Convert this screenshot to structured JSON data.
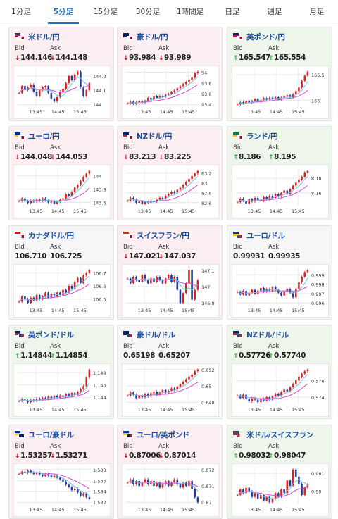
{
  "tabs": [
    {
      "label": "1分足",
      "active": false
    },
    {
      "label": "5分足",
      "active": true
    },
    {
      "label": "15分足",
      "active": false
    },
    {
      "label": "30分足",
      "active": false
    },
    {
      "label": "1時間足",
      "active": false
    },
    {
      "label": "日足",
      "active": false
    },
    {
      "label": "週足",
      "active": false
    },
    {
      "label": "月足",
      "active": false
    }
  ],
  "labels": {
    "bid": "Bid",
    "ask": "Ask"
  },
  "colors": {
    "down": "#d0021b",
    "up": "#2e9a3a",
    "candle_up": "#e02020",
    "candle_down": "#1f3aa0",
    "ma_short": "#6fc3e8",
    "ma_long": "#d24ad2",
    "card_down": "#fbeef0",
    "card_up": "#eef5ea"
  },
  "x_ticks": [
    "13:45",
    "14:45",
    "15:45"
  ],
  "pairs": [
    {
      "name": "米ドル/円",
      "trend": "down",
      "bid": "144.146",
      "ask": "144.148",
      "flags": [
        "us",
        "jp"
      ],
      "yticks": [
        "144.2",
        "144.1",
        "144"
      ],
      "series": [
        144.08,
        144.13,
        144.1,
        144.12,
        144.14,
        144.09,
        144.06,
        144.1,
        144.12,
        144.13,
        144.08,
        144.04,
        144.02,
        144.05,
        144.09,
        144.11,
        144.15,
        144.2,
        144.17,
        144.21,
        144.23,
        144.12,
        144.06,
        144.1,
        144.15
      ]
    },
    {
      "name": "豪ドル/円",
      "trend": "down",
      "bid": "93.984",
      "ask": "93.989",
      "flags": [
        "au",
        "jp"
      ],
      "yticks": [
        "94",
        "93.8",
        "93.6",
        "93.4"
      ],
      "series": [
        93.42,
        93.45,
        93.41,
        93.44,
        93.46,
        93.43,
        93.47,
        93.52,
        93.49,
        93.55,
        93.52,
        93.56,
        93.54,
        93.58,
        93.6,
        93.63,
        93.66,
        93.7,
        93.74,
        93.78,
        93.82,
        93.86,
        93.9,
        93.98,
        94.01
      ]
    },
    {
      "name": "英ポンド/円",
      "trend": "up",
      "bid": "165.547",
      "ask": "165.554",
      "flags": [
        "gb",
        "jp"
      ],
      "yticks": [
        "165.5",
        "165"
      ],
      "series": [
        164.92,
        164.96,
        164.94,
        164.98,
        164.95,
        164.99,
        165.02,
        164.98,
        165.0,
        165.04,
        165.01,
        165.05,
        165.03,
        165.06,
        165.02,
        165.05,
        165.08,
        165.1,
        165.06,
        165.12,
        165.18,
        165.25,
        165.38,
        165.48,
        165.56
      ]
    },
    {
      "name": "ユーロ/円",
      "trend": "down",
      "bid": "144.048",
      "ask": "144.053",
      "flags": [
        "eu",
        "jp"
      ],
      "yticks": [
        "144",
        "143.8",
        "143.6"
      ],
      "series": [
        143.62,
        143.66,
        143.62,
        143.59,
        143.63,
        143.61,
        143.64,
        143.62,
        143.66,
        143.63,
        143.6,
        143.62,
        143.58,
        143.61,
        143.64,
        143.66,
        143.72,
        143.7,
        143.76,
        143.82,
        143.86,
        143.92,
        143.98,
        144.03,
        144.07
      ]
    },
    {
      "name": "NZドル/円",
      "trend": "down",
      "bid": "83.213",
      "ask": "83.225",
      "flags": [
        "nz",
        "jp"
      ],
      "yticks": [
        "83.2",
        "83",
        "82.8",
        "82.6"
      ],
      "series": [
        82.64,
        82.7,
        82.66,
        82.6,
        82.63,
        82.58,
        82.62,
        82.6,
        82.64,
        82.62,
        82.66,
        82.7,
        82.68,
        82.74,
        82.78,
        82.82,
        82.8,
        82.86,
        82.9,
        82.96,
        83.02,
        83.08,
        83.14,
        83.19,
        83.24
      ]
    },
    {
      "name": "ランド/円",
      "trend": "up",
      "bid": "8.186",
      "ask": "8.195",
      "flags": [
        "za",
        "jp"
      ],
      "yticks": [
        "8.18",
        "8.16"
      ],
      "series": [
        8.147,
        8.152,
        8.149,
        8.145,
        8.151,
        8.148,
        8.153,
        8.15,
        8.149,
        8.154,
        8.151,
        8.156,
        8.153,
        8.158,
        8.155,
        8.16,
        8.163,
        8.158,
        8.165,
        8.17,
        8.174,
        8.178,
        8.182,
        8.188,
        8.19
      ]
    },
    {
      "name": "カナダドル/円",
      "trend": "neutral",
      "bid": "106.710",
      "ask": "106.725",
      "flags": [
        "ca",
        "jp"
      ],
      "yticks": [
        "106.7",
        "106.6",
        "106.5"
      ],
      "series": [
        106.48,
        106.52,
        106.5,
        106.47,
        106.51,
        106.49,
        106.53,
        106.5,
        106.52,
        106.55,
        106.51,
        106.54,
        106.52,
        106.55,
        106.53,
        106.57,
        106.55,
        106.6,
        106.58,
        106.63,
        106.66,
        106.62,
        106.68,
        106.7,
        106.72
      ]
    },
    {
      "name": "スイスフラン/円",
      "trend": "down",
      "bid": "147.021",
      "ask": "147.037",
      "flags": [
        "ch",
        "jp"
      ],
      "yticks": [
        "147.1",
        "147",
        "146.9"
      ],
      "series": [
        147.05,
        147.02,
        147.06,
        147.04,
        147.03,
        147.07,
        147.04,
        147.02,
        147.05,
        147.03,
        147.06,
        147.04,
        147.02,
        147.05,
        147.07,
        147.03,
        147.06,
        146.98,
        146.9,
        146.96,
        147.02,
        147.1,
        146.92,
        146.98,
        147.04
      ]
    },
    {
      "name": "ユーロ/ドル",
      "trend": "neutral",
      "bid": "0.99931",
      "ask": "0.99935",
      "flags": [
        "eu",
        "us"
      ],
      "yticks": [
        "0.999",
        "0.998",
        "0.997",
        "0.996"
      ],
      "series": [
        0.9972,
        0.9969,
        0.9973,
        0.9968,
        0.9971,
        0.9974,
        0.997,
        0.9973,
        0.9976,
        0.9972,
        0.9975,
        0.9973,
        0.9977,
        0.9974,
        0.9971,
        0.9968,
        0.9972,
        0.9975,
        0.9971,
        0.9966,
        0.9975,
        0.9982,
        0.9988,
        0.9993,
        0.9995
      ]
    },
    {
      "name": "英ポンド/ドル",
      "trend": "up",
      "bid": "1.14844",
      "ask": "1.14854",
      "flags": [
        "gb",
        "us"
      ],
      "yticks": [
        "1.148",
        "1.146",
        "1.144"
      ],
      "series": [
        1.1434,
        1.1437,
        1.1435,
        1.1432,
        1.1436,
        1.1434,
        1.1438,
        1.1436,
        1.1439,
        1.1437,
        1.1441,
        1.1438,
        1.1442,
        1.1439,
        1.1443,
        1.1441,
        1.1445,
        1.1442,
        1.1447,
        1.1444,
        1.1449,
        1.1453,
        1.1458,
        1.1472,
        1.1485
      ]
    },
    {
      "name": "豪ドル/ドル",
      "trend": "neutral",
      "bid": "0.65198",
      "ask": "0.65207",
      "flags": [
        "au",
        "us"
      ],
      "yticks": [
        "0.652",
        "0.65",
        "0.648"
      ],
      "series": [
        0.6488,
        0.6492,
        0.6489,
        0.6485,
        0.6488,
        0.6486,
        0.649,
        0.6487,
        0.6491,
        0.6493,
        0.6489,
        0.6492,
        0.6495,
        0.6491,
        0.6494,
        0.6497,
        0.6495,
        0.6499,
        0.6502,
        0.6505,
        0.6508,
        0.6511,
        0.6514,
        0.6518,
        0.652
      ]
    },
    {
      "name": "NZドル/ドル",
      "trend": "up",
      "bid": "0.57726",
      "ask": "0.57740",
      "flags": [
        "nz",
        "us"
      ],
      "yticks": [
        "0.576",
        "0.574"
      ],
      "series": [
        0.5742,
        0.5739,
        0.5743,
        0.5738,
        0.5735,
        0.5739,
        0.5737,
        0.5734,
        0.5738,
        0.5736,
        0.574,
        0.5737,
        0.5741,
        0.5744,
        0.5742,
        0.5746,
        0.5749,
        0.5747,
        0.5752,
        0.5756,
        0.576,
        0.5764,
        0.5768,
        0.5771,
        0.5773
      ]
    },
    {
      "name": "ユーロ/豪ドル",
      "trend": "down",
      "bid": "1.53257",
      "ask": "1.53271",
      "flags": [
        "eu",
        "au"
      ],
      "yticks": [
        "1.538",
        "1.536",
        "1.534",
        "1.532"
      ],
      "series": [
        1.5372,
        1.5376,
        1.5374,
        1.5378,
        1.5375,
        1.5372,
        1.5374,
        1.5371,
        1.5368,
        1.5372,
        1.5369,
        1.5366,
        1.5369,
        1.5365,
        1.5362,
        1.5358,
        1.5352,
        1.5348,
        1.5342,
        1.5345,
        1.5338,
        1.5332,
        1.5336,
        1.5329,
        1.5326
      ]
    },
    {
      "name": "ユーロ/英ポンド",
      "trend": "down",
      "bid": "0.87006",
      "ask": "0.87014",
      "flags": [
        "eu",
        "gb"
      ],
      "yticks": [
        "0.872",
        "0.871",
        "0.87"
      ],
      "series": [
        0.8712,
        0.8714,
        0.8711,
        0.8713,
        0.871,
        0.8712,
        0.8714,
        0.8711,
        0.8713,
        0.871,
        0.8712,
        0.8709,
        0.8711,
        0.8713,
        0.871,
        0.8712,
        0.8714,
        0.8711,
        0.8709,
        0.8712,
        0.871,
        0.8713,
        0.8708,
        0.8703,
        0.87
      ]
    },
    {
      "name": "米ドル/スイスフラン",
      "trend": "up",
      "bid": "0.98032",
      "ask": "0.98047",
      "flags": [
        "us",
        "ch"
      ],
      "yticks": [
        "0.981",
        "0.98"
      ],
      "series": [
        0.9798,
        0.9801,
        0.9799,
        0.9802,
        0.98,
        0.9797,
        0.9799,
        0.9796,
        0.9798,
        0.9795,
        0.9797,
        0.9794,
        0.9796,
        0.9799,
        0.9797,
        0.9801,
        0.9799,
        0.9806,
        0.9803,
        0.9812,
        0.9808,
        0.9804,
        0.9798,
        0.9802,
        0.9804
      ]
    }
  ]
}
